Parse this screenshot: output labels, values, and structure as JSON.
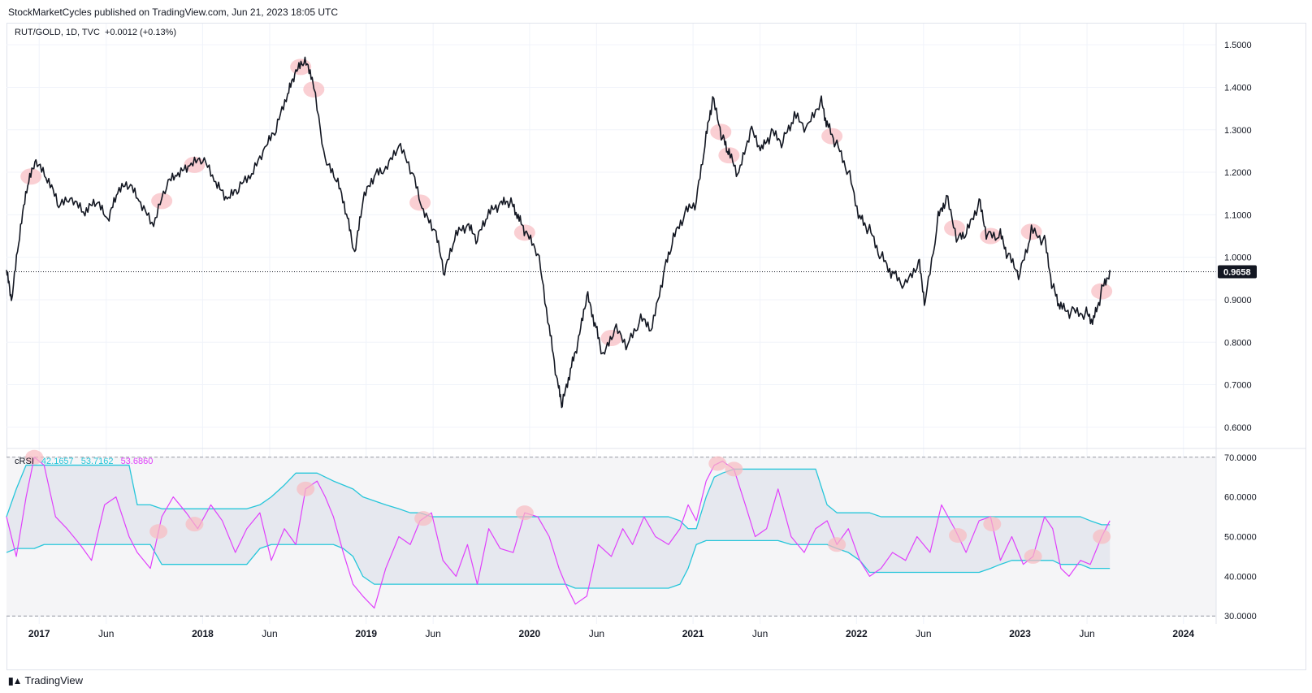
{
  "header": {
    "published": "StockMarketCycles published on TradingView.com, Jun 21, 2023 18:05 UTC"
  },
  "legend_main": {
    "symbol": "RUT/GOLD, 1D, TVC",
    "change": "+0.0012 (+0.13%)"
  },
  "legend_crsi": {
    "name": "cRSI",
    "v1": "42.1657",
    "v2": "53.7162",
    "v3": "53.6860"
  },
  "footer": {
    "brand": "TradingView"
  },
  "colors": {
    "price": "#131722",
    "crsi": "#e040fb",
    "bands": "#26c6da",
    "highlight": "#f8bbc0"
  },
  "chart_data": [
    {
      "type": "line",
      "name": "RUT/GOLD price",
      "title": "RUT/GOLD, 1D, TVC",
      "ylim": [
        0.55,
        1.55
      ],
      "yticks": [
        "1.5000",
        "1.4000",
        "1.3000",
        "1.2000",
        "1.1000",
        "1.0000",
        "0.9000",
        "0.8000",
        "0.7000",
        "0.6000"
      ],
      "last_value": "0.9658",
      "x": [
        2016.8,
        2016.83,
        2016.88,
        2016.93,
        2016.98,
        2017.05,
        2017.12,
        2017.2,
        2017.28,
        2017.35,
        2017.42,
        2017.48,
        2017.55,
        2017.62,
        2017.7,
        2017.78,
        2017.85,
        2017.92,
        2018.0,
        2018.08,
        2018.15,
        2018.22,
        2018.3,
        2018.38,
        2018.45,
        2018.52,
        2018.57,
        2018.62,
        2018.67,
        2018.75,
        2018.82,
        2018.88,
        2018.93,
        2018.98,
        2019.05,
        2019.12,
        2019.2,
        2019.28,
        2019.35,
        2019.42,
        2019.48,
        2019.55,
        2019.62,
        2019.68,
        2019.75,
        2019.82,
        2019.88,
        2019.93,
        2019.98,
        2020.05,
        2020.12,
        2020.17,
        2020.2,
        2020.25,
        2020.3,
        2020.35,
        2020.4,
        2020.45,
        2020.52,
        2020.6,
        2020.68,
        2020.75,
        2020.82,
        2020.88,
        2020.95,
        2021.02,
        2021.08,
        2021.12,
        2021.18,
        2021.22,
        2021.28,
        2021.35,
        2021.42,
        2021.48,
        2021.55,
        2021.62,
        2021.7,
        2021.78,
        2021.82,
        2021.88,
        2021.95,
        2022.02,
        2022.08,
        2022.15,
        2022.22,
        2022.3,
        2022.38,
        2022.42,
        2022.5,
        2022.55,
        2022.62,
        2022.68,
        2022.75,
        2022.8,
        2022.88,
        2022.93,
        2023.0,
        2023.07,
        2023.15,
        2023.2,
        2023.25,
        2023.32,
        2023.4,
        2023.45,
        2023.5,
        2023.55
      ],
      "values": [
        0.97,
        0.89,
        1.05,
        1.17,
        1.22,
        1.18,
        1.12,
        1.13,
        1.1,
        1.13,
        1.08,
        1.15,
        1.17,
        1.12,
        1.07,
        1.17,
        1.19,
        1.21,
        1.23,
        1.17,
        1.13,
        1.16,
        1.19,
        1.25,
        1.3,
        1.38,
        1.43,
        1.46,
        1.42,
        1.22,
        1.18,
        1.1,
        1.0,
        1.13,
        1.19,
        1.2,
        1.26,
        1.2,
        1.1,
        1.06,
        0.96,
        1.05,
        1.07,
        1.04,
        1.1,
        1.12,
        1.13,
        1.09,
        1.05,
        1.01,
        0.83,
        0.7,
        0.65,
        0.73,
        0.8,
        0.91,
        0.84,
        0.76,
        0.83,
        0.79,
        0.85,
        0.83,
        0.96,
        1.04,
        1.1,
        1.13,
        1.28,
        1.37,
        1.28,
        1.24,
        1.19,
        1.3,
        1.25,
        1.29,
        1.27,
        1.33,
        1.3,
        1.37,
        1.31,
        1.26,
        1.2,
        1.09,
        1.06,
        1.0,
        0.96,
        0.93,
        0.99,
        0.89,
        1.09,
        1.14,
        1.04,
        1.06,
        1.13,
        1.05,
        1.05,
        1.0,
        0.96,
        1.06,
        1.04,
        0.93,
        0.88,
        0.87,
        0.87,
        0.85,
        0.92,
        0.97
      ],
      "highlight_x": [
        2016.95,
        2017.75,
        2017.95,
        2018.6,
        2018.68,
        2019.33,
        2019.97,
        2020.5,
        2021.17,
        2021.22,
        2021.85,
        2022.6,
        2022.82,
        2023.07,
        2023.5
      ]
    },
    {
      "type": "line",
      "name": "cRSI",
      "ylim": [
        28,
        72
      ],
      "yticks": [
        "70.0000",
        "60.0000",
        "50.0000",
        "40.0000",
        "30.0000"
      ],
      "levels": [
        70,
        30
      ],
      "xtick_labels": [
        "2017",
        "Jun",
        "2018",
        "Jun",
        "2019",
        "Jun",
        "2020",
        "Jun",
        "2021",
        "Jun",
        "2022",
        "Jun",
        "2023",
        "Jun",
        "2024"
      ],
      "xtick_values": [
        2017.0,
        2017.41,
        2018.0,
        2018.41,
        2019.0,
        2019.41,
        2020.0,
        2020.41,
        2021.0,
        2021.41,
        2022.0,
        2022.41,
        2023.0,
        2023.41,
        2024.0
      ],
      "x": [
        2016.8,
        2016.86,
        2016.92,
        2016.97,
        2017.03,
        2017.1,
        2017.17,
        2017.25,
        2017.32,
        2017.4,
        2017.47,
        2017.55,
        2017.6,
        2017.68,
        2017.75,
        2017.82,
        2017.9,
        2017.97,
        2018.05,
        2018.12,
        2018.2,
        2018.27,
        2018.35,
        2018.42,
        2018.5,
        2018.57,
        2018.63,
        2018.7,
        2018.75,
        2018.8,
        2018.86,
        2018.92,
        2018.98,
        2019.05,
        2019.12,
        2019.2,
        2019.27,
        2019.33,
        2019.4,
        2019.47,
        2019.55,
        2019.62,
        2019.68,
        2019.75,
        2019.82,
        2019.9,
        2019.97,
        2020.05,
        2020.12,
        2020.18,
        2020.22,
        2020.28,
        2020.35,
        2020.42,
        2020.5,
        2020.57,
        2020.63,
        2020.7,
        2020.77,
        2020.85,
        2020.92,
        2020.97,
        2021.02,
        2021.08,
        2021.13,
        2021.18,
        2021.25,
        2021.32,
        2021.38,
        2021.45,
        2021.52,
        2021.6,
        2021.68,
        2021.75,
        2021.82,
        2021.88,
        2021.95,
        2022.02,
        2022.08,
        2022.15,
        2022.22,
        2022.3,
        2022.37,
        2022.45,
        2022.52,
        2022.6,
        2022.67,
        2022.75,
        2022.82,
        2022.88,
        2022.95,
        2023.02,
        2023.08,
        2023.15,
        2023.2,
        2023.25,
        2023.3,
        2023.37,
        2023.43,
        2023.5,
        2023.55
      ],
      "crsi": [
        55,
        45,
        60,
        70,
        68,
        55,
        52,
        48,
        44,
        58,
        60,
        50,
        46,
        42,
        55,
        60,
        56,
        52,
        58,
        54,
        46,
        52,
        56,
        44,
        52,
        48,
        62,
        64,
        60,
        55,
        46,
        38,
        35,
        32,
        42,
        50,
        48,
        54,
        56,
        44,
        40,
        48,
        38,
        52,
        47,
        46,
        56,
        55,
        50,
        42,
        38,
        33,
        35,
        48,
        45,
        52,
        48,
        55,
        50,
        48,
        52,
        58,
        54,
        64,
        68,
        69,
        67,
        58,
        50,
        52,
        62,
        50,
        46,
        52,
        54,
        48,
        52,
        44,
        40,
        42,
        46,
        44,
        50,
        46,
        58,
        52,
        46,
        54,
        55,
        44,
        50,
        43,
        45,
        55,
        52,
        42,
        40,
        44,
        43,
        50,
        54
      ],
      "upper": [
        55,
        62,
        68,
        68,
        68,
        68,
        68,
        68,
        68,
        68,
        68,
        68,
        58,
        58,
        57,
        57,
        57,
        57,
        57,
        57,
        57,
        57,
        58,
        60,
        63,
        66,
        66,
        66,
        65,
        64,
        63,
        62,
        60,
        59,
        58,
        57,
        56,
        56,
        55,
        55,
        55,
        55,
        55,
        55,
        55,
        55,
        55,
        55,
        55,
        55,
        55,
        55,
        55,
        55,
        55,
        55,
        55,
        55,
        55,
        55,
        54,
        52,
        52,
        60,
        65,
        66,
        67,
        67,
        67,
        67,
        67,
        67,
        67,
        67,
        58,
        56,
        56,
        56,
        56,
        55,
        55,
        55,
        55,
        55,
        55,
        55,
        55,
        55,
        55,
        55,
        55,
        55,
        55,
        55,
        55,
        55,
        55,
        55,
        54,
        53,
        53
      ],
      "lower": [
        46,
        47,
        47,
        47,
        48,
        48,
        48,
        48,
        48,
        48,
        48,
        48,
        48,
        48,
        43,
        43,
        43,
        43,
        43,
        43,
        43,
        43,
        47,
        48,
        48,
        48,
        48,
        48,
        48,
        48,
        47,
        45,
        40,
        38,
        38,
        38,
        38,
        38,
        38,
        38,
        38,
        38,
        38,
        38,
        38,
        38,
        38,
        38,
        38,
        38,
        38,
        37,
        37,
        37,
        37,
        37,
        37,
        37,
        37,
        37,
        38,
        42,
        48,
        49,
        49,
        49,
        49,
        49,
        49,
        49,
        49,
        48,
        48,
        48,
        48,
        47,
        46,
        44,
        41,
        41,
        41,
        41,
        41,
        41,
        41,
        41,
        41,
        41,
        42,
        43,
        44,
        44,
        44,
        44,
        44,
        43,
        43,
        43,
        42,
        42,
        42
      ],
      "highlight_x": [
        2016.97,
        2017.73,
        2017.95,
        2018.63,
        2019.35,
        2019.97,
        2021.15,
        2021.25,
        2021.88,
        2022.62,
        2022.83,
        2023.08,
        2023.5
      ]
    }
  ]
}
